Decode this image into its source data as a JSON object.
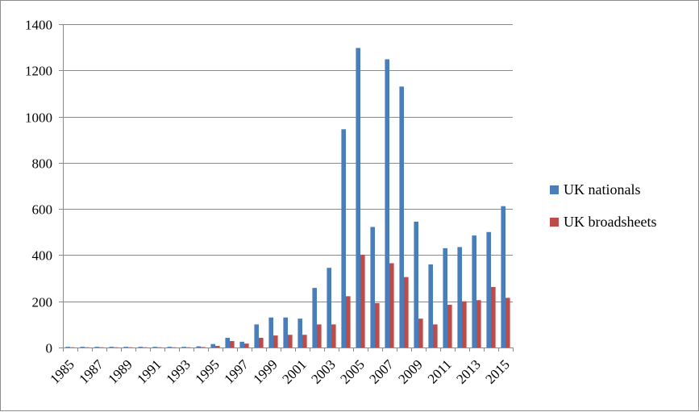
{
  "chart_data": {
    "type": "bar",
    "categories": [
      "1985",
      "1986",
      "1987",
      "1988",
      "1989",
      "1990",
      "1991",
      "1992",
      "1993",
      "1994",
      "1995",
      "1996",
      "1997",
      "1998",
      "1999",
      "2000",
      "2001",
      "2002",
      "2003",
      "2004",
      "2005",
      "2006",
      "2007",
      "2008",
      "2009",
      "2010",
      "2011",
      "2012",
      "2013",
      "2014",
      "2015"
    ],
    "x_tick_labels": [
      "1985",
      "1987",
      "1989",
      "1991",
      "1993",
      "1995",
      "1997",
      "1999",
      "2001",
      "2003",
      "2005",
      "2007",
      "2009",
      "2011",
      "2013",
      "2015"
    ],
    "y_tick_labels": [
      "0",
      "200",
      "400",
      "600",
      "800",
      "1000",
      "1200",
      "1400"
    ],
    "ylim": [
      0,
      1400
    ],
    "grid": true,
    "legend_position": "right",
    "series": [
      {
        "name": "UK nationals",
        "color": "#4a7ebb",
        "values": [
          3,
          3,
          3,
          3,
          3,
          3,
          3,
          3,
          3,
          5,
          15,
          42,
          25,
          100,
          130,
          130,
          125,
          258,
          345,
          945,
          1297,
          522,
          1248,
          1130,
          545,
          360,
          430,
          435,
          485,
          500,
          612
        ]
      },
      {
        "name": "UK broadsheets",
        "color": "#be4b48",
        "values": [
          1,
          1,
          1,
          1,
          1,
          1,
          1,
          1,
          1,
          2,
          7,
          28,
          17,
          42,
          52,
          55,
          55,
          100,
          100,
          222,
          402,
          192,
          365,
          305,
          125,
          100,
          185,
          200,
          205,
          262,
          215
        ]
      }
    ],
    "title": "",
    "xlabel": "",
    "ylabel": ""
  }
}
